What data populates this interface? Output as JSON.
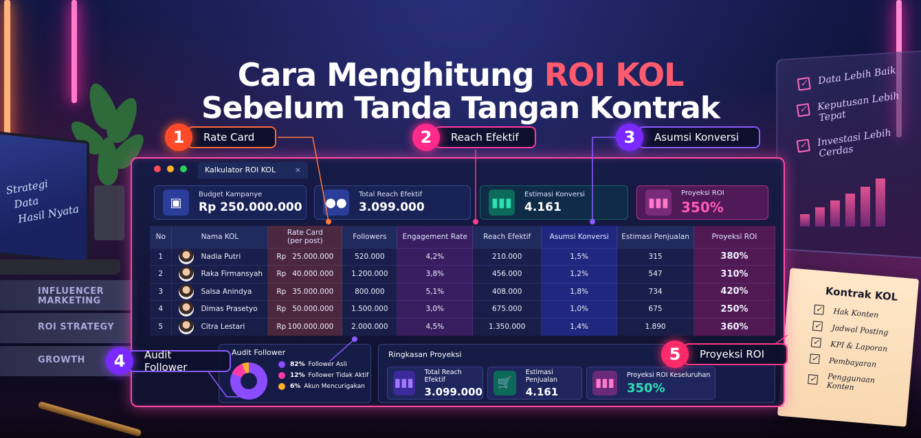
{
  "headline": {
    "line1_pre": "Cara Menghitung ",
    "line1_accent": "ROI KOL",
    "line2": "Sebelum Tanda Tangan Kontrak"
  },
  "laptop_notes": [
    "Strategi",
    "Data",
    "Hasil Nyata"
  ],
  "books": [
    "INFLUENCER MARKETING",
    "ROI STRATEGY",
    "GROWTH"
  ],
  "board_items": [
    "Data Lebih Baik",
    "Keputusan Lebih Tepat",
    "Investasi Lebih Cerdas"
  ],
  "contract": {
    "title": "Kontrak KOL",
    "items": [
      "Hak Konten",
      "Jadwal Posting",
      "KPI & Laporan",
      "Pembayaran",
      "Penggunaan Konten"
    ]
  },
  "steps": [
    {
      "num": "1",
      "label": "Rate Card",
      "color": "#ff5a2a"
    },
    {
      "num": "2",
      "label": "Reach Efektif",
      "color": "#ff2a8a"
    },
    {
      "num": "3",
      "label": "Asumsi Konversi",
      "color": "#8a3cff"
    },
    {
      "num": "4",
      "label": "Audit Follower",
      "color": "#8a3cff"
    },
    {
      "num": "5",
      "label": "Proyeksi ROI",
      "color": "#ff2a6a"
    }
  ],
  "window": {
    "tab_title": "Kalkulator ROI KOL",
    "tab_close": "×",
    "kpis": [
      {
        "label": "Budget Kampanye",
        "value": "Rp 250.000.000",
        "icon": "wallet-icon",
        "color": "#3a6aff"
      },
      {
        "label": "Total Reach Efektif",
        "value": "3.099.000",
        "icon": "users-icon",
        "color": "#3a6aff"
      },
      {
        "label": "Estimasi Konversi",
        "value": "4.161",
        "icon": "bar-chart-icon",
        "color": "#1fd0a0"
      },
      {
        "label": "Proyeksi ROI",
        "value": "350%",
        "icon": "bar-chart-icon",
        "color": "#ff3aa8"
      }
    ],
    "table": {
      "headers": [
        "No",
        "Nama KOL",
        "Rate Card\n(per post)",
        "Followers",
        "Engagement Rate",
        "Reach Efektif",
        "Asumsi Konversi",
        "Estimasi Penjualan",
        "Proyeksi ROI"
      ],
      "rows": [
        {
          "no": "1",
          "name": "Nadia Putri",
          "rp": "Rp",
          "rate": "25.000.000",
          "followers": "520.000",
          "er": "4,2%",
          "reach": "210.000",
          "konv": "1,5%",
          "sales": "315",
          "roi": "380%"
        },
        {
          "no": "2",
          "name": "Raka Firmansyah",
          "rp": "Rp",
          "rate": "40.000.000",
          "followers": "1.200.000",
          "er": "3,8%",
          "reach": "456.000",
          "konv": "1,2%",
          "sales": "547",
          "roi": "310%"
        },
        {
          "no": "3",
          "name": "Salsa Anindya",
          "rp": "Rp",
          "rate": "35.000.000",
          "followers": "800.000",
          "er": "5,1%",
          "reach": "408.000",
          "konv": "1,8%",
          "sales": "734",
          "roi": "420%"
        },
        {
          "no": "4",
          "name": "Dimas Prasetyo",
          "rp": "Rp",
          "rate": "50.000.000",
          "followers": "1.500.000",
          "er": "3,0%",
          "reach": "675.000",
          "konv": "1,0%",
          "sales": "675",
          "roi": "250%"
        },
        {
          "no": "5",
          "name": "Citra Lestari",
          "rp": "Rp",
          "rate": "100.000.000",
          "followers": "2.000.000",
          "er": "4,5%",
          "reach": "1.350.000",
          "konv": "1,4%",
          "sales": "1.890",
          "roi": "360%"
        }
      ]
    },
    "audit": {
      "title": "Audit Follower",
      "items": [
        {
          "pct": "82%",
          "label": "Follower Asli",
          "color": "#8b4cff"
        },
        {
          "pct": "12%",
          "label": "Follower Tidak Aktif",
          "color": "#ff3aa8"
        },
        {
          "pct": "6%",
          "label": "Akun Mencurigakan",
          "color": "#ffb12a"
        }
      ]
    },
    "summary": {
      "title": "Ringkasan Proyeksi",
      "cards": [
        {
          "label": "Total Reach Efektif",
          "value": "3.099.000",
          "icon": "bar-chart-icon",
          "color": "#6a3cff"
        },
        {
          "label": "Estimasi Penjualan",
          "value": "4.161",
          "icon": "cart-icon",
          "color": "#1fd0a0"
        },
        {
          "label": "Proyeksi ROI Keseluruhan",
          "value": "350%",
          "icon": "bar-chart-icon",
          "color": "#ff3aa8"
        }
      ]
    }
  }
}
